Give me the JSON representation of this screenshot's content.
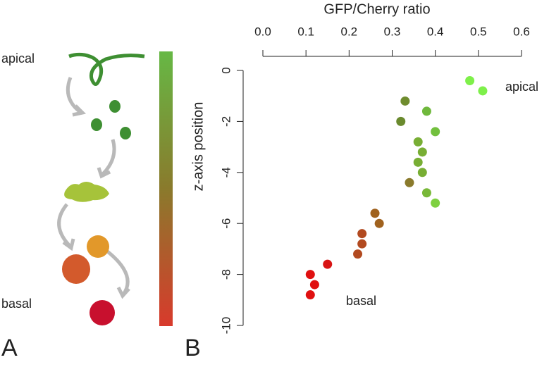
{
  "panel_a": {
    "label": "A",
    "top_label": "apical",
    "bottom_label": "basal"
  },
  "chart_data": {
    "type": "scatter",
    "panel_label": "B",
    "x_label": "GFP/Cherry ratio",
    "y_label": "z-axis position",
    "xlim": [
      0,
      0.6
    ],
    "xticks": [
      {
        "value": 0,
        "label": "0.0"
      },
      0.1,
      0.2,
      0.3,
      0.4,
      0.5,
      0.6
    ],
    "ylim": [
      -10,
      0
    ],
    "yticks": [
      0,
      -2,
      -4,
      -6,
      -8,
      -10
    ],
    "annotations": [
      "apical",
      "basal"
    ],
    "x": [
      0.48,
      0.51,
      0.33,
      0.38,
      0.32,
      0.4,
      0.36,
      0.37,
      0.36,
      0.37,
      0.34,
      0.38,
      0.4,
      0.26,
      0.27,
      0.23,
      0.23,
      0.22,
      0.15,
      0.11,
      0.12,
      0.11
    ],
    "y": [
      -0.4,
      -0.8,
      -1.2,
      -1.6,
      -2.0,
      -2.4,
      -2.8,
      -3.2,
      -3.6,
      -4.0,
      -4.4,
      -4.8,
      -5.2,
      -5.6,
      -6.0,
      -6.4,
      -6.8,
      -7.2,
      -7.6,
      -8.0,
      -8.4,
      -8.8
    ],
    "point_colors": [
      "#7ef04a",
      "#7ef04a",
      "#6f8c2e",
      "#6fb83c",
      "#6a8a2e",
      "#72c03e",
      "#78ae34",
      "#78ae34",
      "#78ae34",
      "#78ae34",
      "#8a7a2c",
      "#78b838",
      "#7ed040",
      "#a0621e",
      "#a0621e",
      "#b24a20",
      "#b24a20",
      "#b24a20",
      "#d81414",
      "#e01010",
      "#e01010",
      "#e01010"
    ]
  }
}
